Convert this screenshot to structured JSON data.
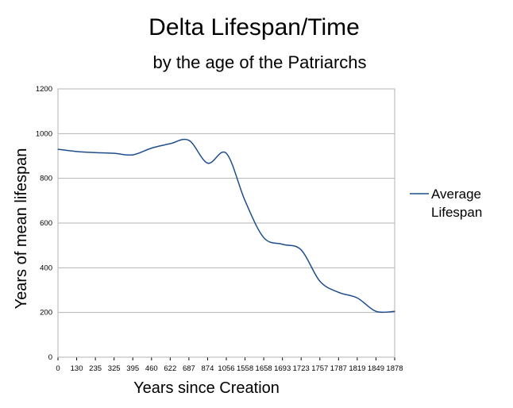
{
  "colors": {
    "series": "#1f4e8c",
    "grid": "#b3b3b3",
    "axis": "#000000"
  },
  "chart_data": {
    "type": "line",
    "title": "Delta Lifespan/Time",
    "subtitle": "by the age of the Patriarchs",
    "xlabel": "Years since Creation",
    "ylabel": "Years of mean  lifespan",
    "ylim": [
      0,
      1200
    ],
    "yticks": [
      0,
      200,
      400,
      600,
      800,
      1000,
      1200
    ],
    "grid": true,
    "legend_position": "right",
    "categories": [
      "0",
      "130",
      "235",
      "325",
      "395",
      "460",
      "622",
      "687",
      "874",
      "1056",
      "1558",
      "1658",
      "1693",
      "1723",
      "1757",
      "1787",
      "1819",
      "1849",
      "1878"
    ],
    "series": [
      {
        "name": "Average Lifespan",
        "values": [
          930,
          920,
          915,
          912,
          905,
          935,
          955,
          970,
          868,
          912,
          700,
          535,
          505,
          480,
          340,
          290,
          265,
          205,
          205
        ]
      }
    ]
  }
}
